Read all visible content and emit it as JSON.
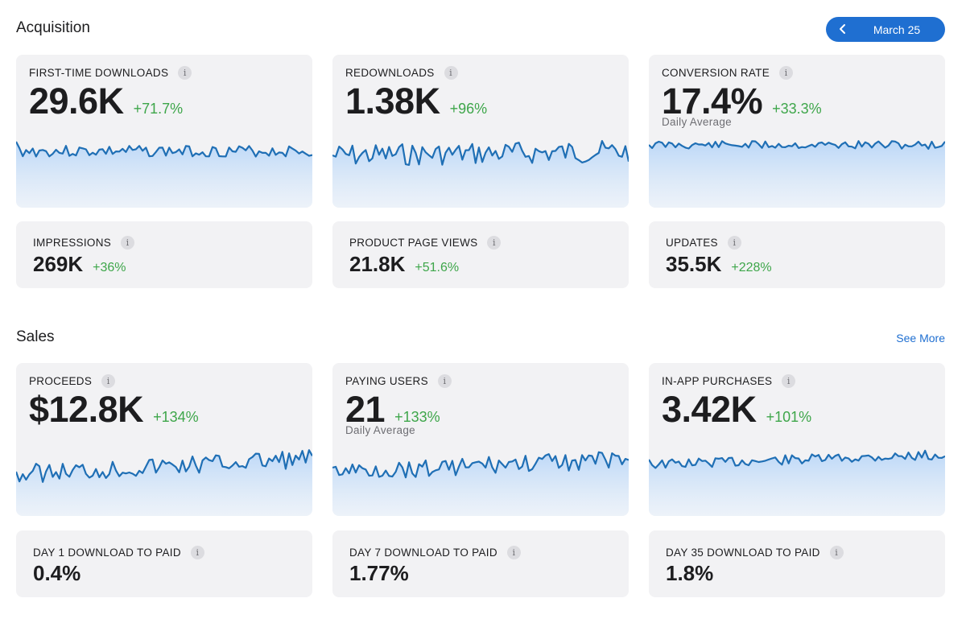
{
  "acquisition": {
    "title": "Acquisition",
    "date_label": "March 25",
    "cards": [
      {
        "title": "FIRST-TIME DOWNLOADS",
        "value": "29.6K",
        "delta": "+71.7%",
        "sub": ""
      },
      {
        "title": "REDOWNLOADS",
        "value": "1.38K",
        "delta": "+96%",
        "sub": ""
      },
      {
        "title": "CONVERSION RATE",
        "value": "17.4%",
        "delta": "+33.3%",
        "sub": "Daily Average"
      }
    ],
    "small_cards": [
      {
        "title": "IMPRESSIONS",
        "value": "269K",
        "delta": "+36%"
      },
      {
        "title": "PRODUCT PAGE VIEWS",
        "value": "21.8K",
        "delta": "+51.6%"
      },
      {
        "title": "UPDATES",
        "value": "35.5K",
        "delta": "+228%"
      }
    ]
  },
  "sales": {
    "title": "Sales",
    "see_more": "See More",
    "cards": [
      {
        "title": "PROCEEDS",
        "value": "$12.8K",
        "delta": "+134%",
        "sub": ""
      },
      {
        "title": "PAYING USERS",
        "value": "21",
        "delta": "+133%",
        "sub": "Daily Average"
      },
      {
        "title": "IN-APP PURCHASES",
        "value": "3.42K",
        "delta": "+101%",
        "sub": ""
      }
    ],
    "small_cards": [
      {
        "title": "DAY 1 DOWNLOAD TO PAID",
        "value": "0.4%"
      },
      {
        "title": "DAY 7 DOWNLOAD TO PAID",
        "value": "1.77%"
      },
      {
        "title": "DAY 35 DOWNLOAD TO PAID",
        "value": "1.8%"
      }
    ]
  },
  "icons": {
    "info": "info-icon",
    "back": "chevron-left-icon"
  },
  "colors": {
    "accent": "#1f6fd1",
    "positive": "#3ea64a",
    "line": "#1f6fb5",
    "card_bg": "#f2f2f4"
  }
}
